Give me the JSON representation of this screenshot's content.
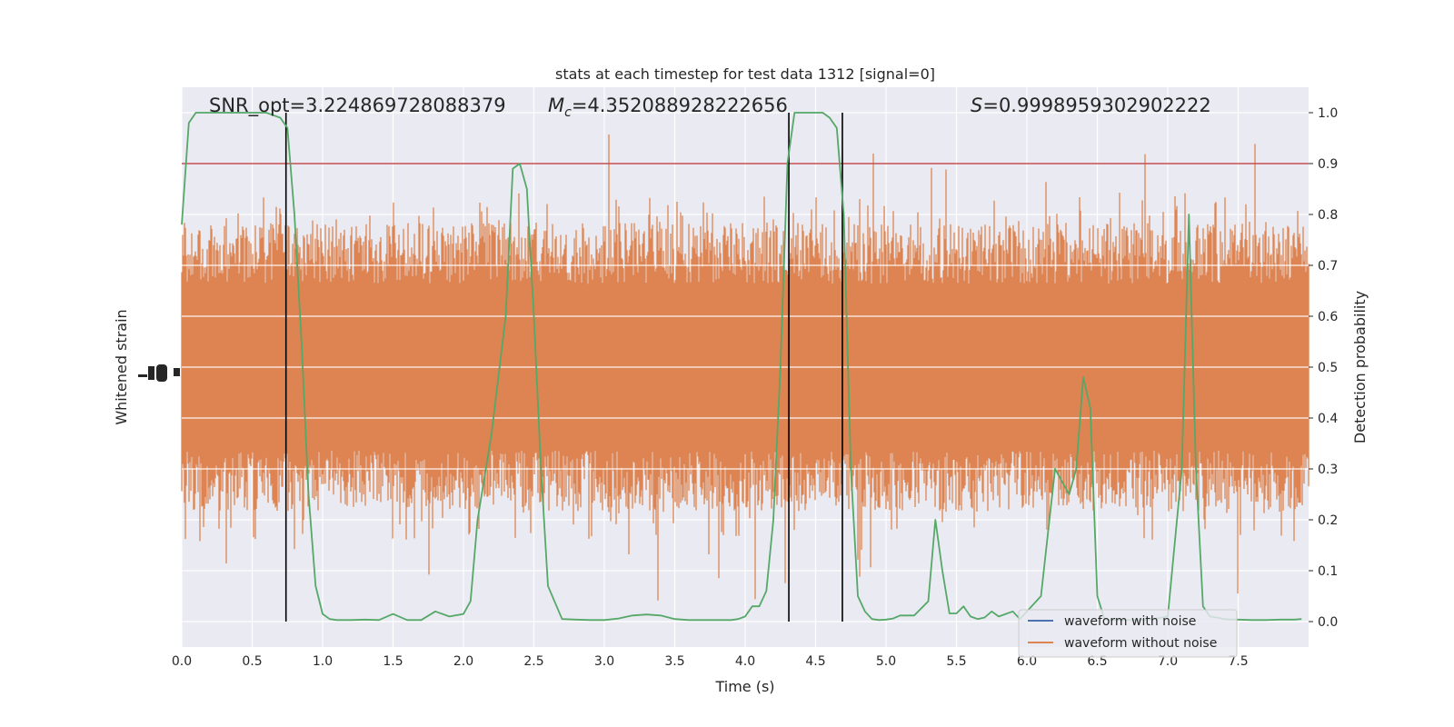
{
  "chart_data": {
    "type": "line",
    "title": "stats at each timestep for test data 1312 [signal=0]",
    "xlabel": "Time (s)",
    "ylabel_left": "Whitened strain",
    "ylabel_right": "Detection probability",
    "xlim": [
      0.0,
      8.0
    ],
    "ylim_right": [
      -0.05,
      1.05
    ],
    "x_ticks": [
      "0.0",
      "0.5",
      "1.0",
      "1.5",
      "2.0",
      "2.5",
      "3.0",
      "3.5",
      "4.0",
      "4.5",
      "5.0",
      "5.5",
      "6.0",
      "6.5",
      "7.0",
      "7.5"
    ],
    "y_ticks_right": [
      "0.0",
      "0.1",
      "0.2",
      "0.3",
      "0.4",
      "0.5",
      "0.6",
      "0.7",
      "0.8",
      "0.9",
      "1.0"
    ],
    "grid": true,
    "legend_position": "lower-right",
    "annotations": {
      "snr": "SNR_opt=3.224869728088379",
      "mc_symbol": "M",
      "mc_sub": "c",
      "mc_value": "=4.352088928222656",
      "s_symbol": "S",
      "s_value": "=0.9998959302902222"
    },
    "threshold": 0.9,
    "vertical_lines_x": [
      0.74,
      4.31,
      4.69
    ],
    "series": [
      {
        "name": "waveform with noise",
        "color": "#4c72b0",
        "note_kind": "strain",
        "values": []
      },
      {
        "name": "waveform without noise",
        "color": "#dd8452",
        "kind": "noise",
        "center": 0.5,
        "spread_typical": [
          0.3,
          0.7
        ],
        "spread_extreme": [
          0.04,
          0.96
        ]
      },
      {
        "color": "#55a868",
        "x": [
          0.0,
          0.05,
          0.1,
          0.15,
          0.2,
          0.3,
          0.4,
          0.5,
          0.6,
          0.65,
          0.7,
          0.75,
          0.8,
          0.85,
          0.9,
          0.95,
          1.0,
          1.05,
          1.1,
          1.2,
          1.3,
          1.4,
          1.5,
          1.6,
          1.7,
          1.8,
          1.9,
          2.0,
          2.05,
          2.1,
          2.2,
          2.3,
          2.35,
          2.4,
          2.45,
          2.5,
          2.55,
          2.6,
          2.7,
          2.8,
          2.9,
          3.0,
          3.1,
          3.2,
          3.3,
          3.4,
          3.5,
          3.6,
          3.7,
          3.8,
          3.9,
          3.95,
          4.0,
          4.05,
          4.1,
          4.15,
          4.2,
          4.25,
          4.3,
          4.35,
          4.4,
          4.45,
          4.5,
          4.55,
          4.6,
          4.65,
          4.7,
          4.75,
          4.8,
          4.85,
          4.9,
          4.95,
          5.0,
          5.05,
          5.1,
          5.2,
          5.3,
          5.35,
          5.4,
          5.45,
          5.5,
          5.55,
          5.6,
          5.65,
          5.7,
          5.75,
          5.8,
          5.85,
          5.9,
          5.95,
          6.0,
          6.1,
          6.2,
          6.3,
          6.35,
          6.4,
          6.45,
          6.5,
          6.55,
          6.6,
          6.7,
          6.8,
          6.9,
          7.0,
          7.1,
          7.15,
          7.2,
          7.25,
          7.3,
          7.35,
          7.4,
          7.45,
          7.5,
          7.6,
          7.7,
          7.8,
          7.9,
          7.95
        ],
        "values": [
          0.78,
          0.98,
          1.0,
          1.0,
          1.0,
          1.0,
          1.0,
          1.0,
          1.0,
          0.995,
          0.99,
          0.97,
          0.8,
          0.55,
          0.25,
          0.07,
          0.015,
          0.005,
          0.003,
          0.003,
          0.004,
          0.003,
          0.015,
          0.003,
          0.003,
          0.02,
          0.01,
          0.015,
          0.04,
          0.2,
          0.37,
          0.6,
          0.89,
          0.9,
          0.85,
          0.6,
          0.3,
          0.07,
          0.005,
          0.004,
          0.003,
          0.003,
          0.006,
          0.012,
          0.014,
          0.012,
          0.005,
          0.003,
          0.003,
          0.003,
          0.003,
          0.005,
          0.01,
          0.03,
          0.03,
          0.06,
          0.2,
          0.5,
          0.9,
          1.0,
          1.0,
          1.0,
          1.0,
          1.0,
          0.99,
          0.97,
          0.8,
          0.3,
          0.05,
          0.02,
          0.005,
          0.003,
          0.004,
          0.006,
          0.012,
          0.012,
          0.04,
          0.2,
          0.1,
          0.016,
          0.016,
          0.03,
          0.01,
          0.005,
          0.008,
          0.02,
          0.01,
          0.015,
          0.02,
          0.005,
          0.02,
          0.05,
          0.3,
          0.25,
          0.3,
          0.48,
          0.42,
          0.05,
          0.005,
          0.003,
          0.003,
          0.003,
          0.005,
          0.01,
          0.3,
          0.8,
          0.3,
          0.03,
          0.01,
          0.008,
          0.005,
          0.004,
          0.004,
          0.003,
          0.003,
          0.004,
          0.004,
          0.005
        ]
      }
    ]
  },
  "colors": {
    "plot_bg": "#eaeaf2",
    "grid": "#ffffff",
    "threshold": "#c44e52",
    "vline": "#000000",
    "noise": "#dd8452",
    "strain": "#4c72b0",
    "probability": "#55a868"
  }
}
